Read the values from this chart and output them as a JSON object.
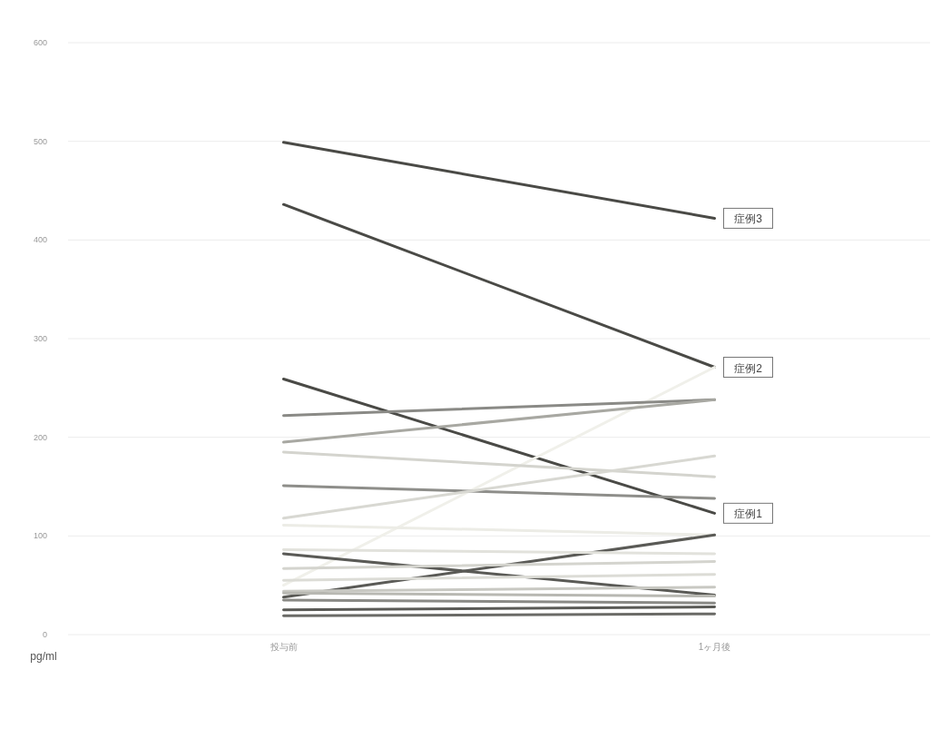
{
  "chart_data": {
    "type": "line",
    "categories": [
      "投与前",
      "1ヶ月後"
    ],
    "ylabel": "pg/ml",
    "ylim": [
      0,
      600
    ],
    "yticks": [
      0,
      100,
      200,
      300,
      400,
      500,
      600
    ],
    "grid": "y",
    "marker": "none",
    "line_style": "solid",
    "series": [
      {
        "color": "#4a4a46",
        "values": [
          499,
          422
        ]
      },
      {
        "color": "#4a4a46",
        "values": [
          436,
          271
        ]
      },
      {
        "color": "#4a4a46",
        "values": [
          259,
          123
        ]
      },
      {
        "color": "#f0f0ea",
        "values": [
          50,
          271
        ]
      },
      {
        "color": "#8a8a86",
        "values": [
          222,
          238
        ]
      },
      {
        "color": "#a8a8a2",
        "values": [
          195,
          238
        ]
      },
      {
        "color": "#d4d4ce",
        "values": [
          185,
          160
        ]
      },
      {
        "color": "#8e8e8a",
        "values": [
          151,
          138
        ]
      },
      {
        "color": "#d8d8d2",
        "values": [
          118,
          181
        ]
      },
      {
        "color": "#ececE6",
        "values": [
          111,
          101
        ]
      },
      {
        "color": "#5a5a56",
        "values": [
          38,
          101
        ]
      },
      {
        "color": "#5a5a56",
        "values": [
          82,
          40
        ]
      },
      {
        "color": "#e2e2dc",
        "values": [
          86,
          82
        ]
      },
      {
        "color": "#d4d4ce",
        "values": [
          67,
          74
        ]
      },
      {
        "color": "#dcdcd6",
        "values": [
          55,
          61
        ]
      },
      {
        "color": "#c8c8c2",
        "values": [
          44,
          48
        ]
      },
      {
        "color": "#b8b8b2",
        "values": [
          42,
          39
        ]
      },
      {
        "color": "#8a8a86",
        "values": [
          35,
          32
        ]
      },
      {
        "color": "#5a5a56",
        "values": [
          25,
          28
        ]
      },
      {
        "color": "#6a6a66",
        "values": [
          19,
          21
        ]
      }
    ],
    "annotations": [
      {
        "text": "症例3",
        "x": "1ヶ月後",
        "y": 422
      },
      {
        "text": "症例2",
        "x": "1ヶ月後",
        "y": 271
      },
      {
        "text": "症例1",
        "x": "1ヶ月後",
        "y": 123
      }
    ]
  }
}
